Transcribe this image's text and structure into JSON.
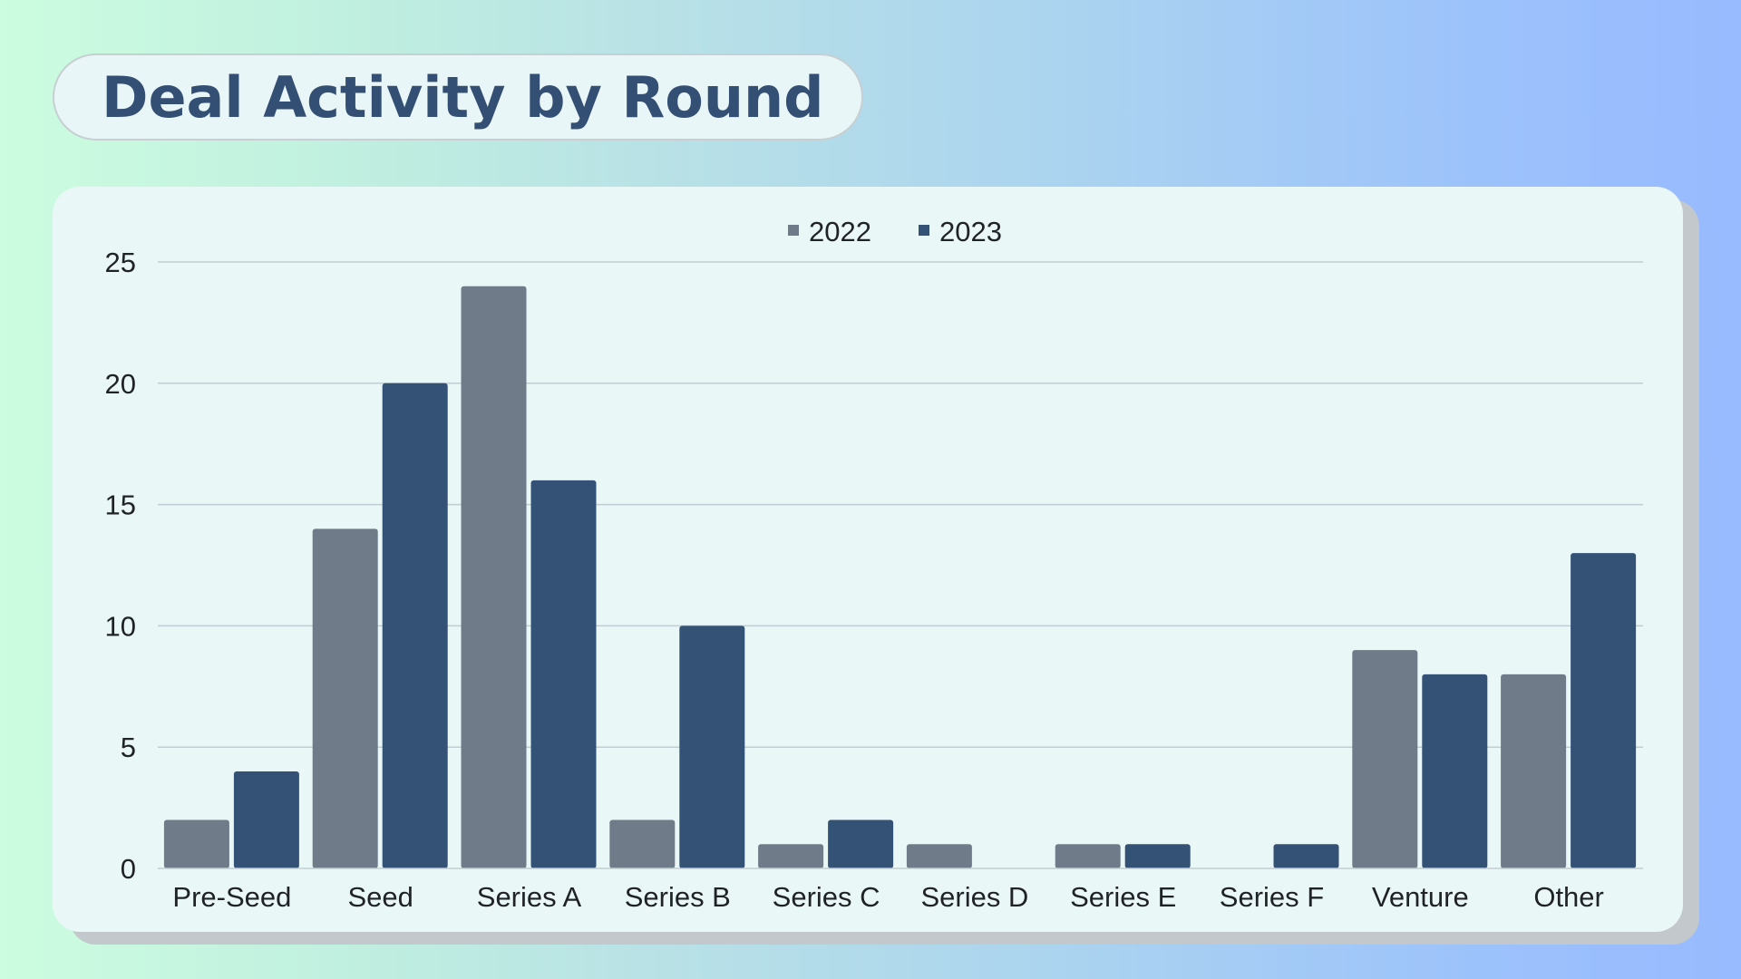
{
  "title": "Deal Activity by Round",
  "colors": {
    "series_2022": "#6f7b89",
    "series_2023": "#345176",
    "grid": "#c2cdd1",
    "text": "#1f2328"
  },
  "chart_data": {
    "type": "bar",
    "title": "Deal Activity by Round",
    "xlabel": "",
    "ylabel": "",
    "ylim": [
      0,
      25
    ],
    "yticks": [
      "0",
      "5",
      "10",
      "15",
      "20",
      "25"
    ],
    "grid": true,
    "legend_position": "top-center",
    "categories": [
      "Pre-Seed",
      "Seed",
      "Series A",
      "Series B",
      "Series C",
      "Series D",
      "Series E",
      "Series F",
      "Venture",
      "Other"
    ],
    "series": [
      {
        "name": "2022",
        "color": "#6f7b89",
        "values": [
          2,
          14,
          24,
          2,
          1,
          1,
          1,
          0,
          9,
          8
        ]
      },
      {
        "name": "2023",
        "color": "#345176",
        "values": [
          4,
          20,
          16,
          10,
          2,
          0,
          1,
          1,
          8,
          13
        ]
      }
    ]
  }
}
